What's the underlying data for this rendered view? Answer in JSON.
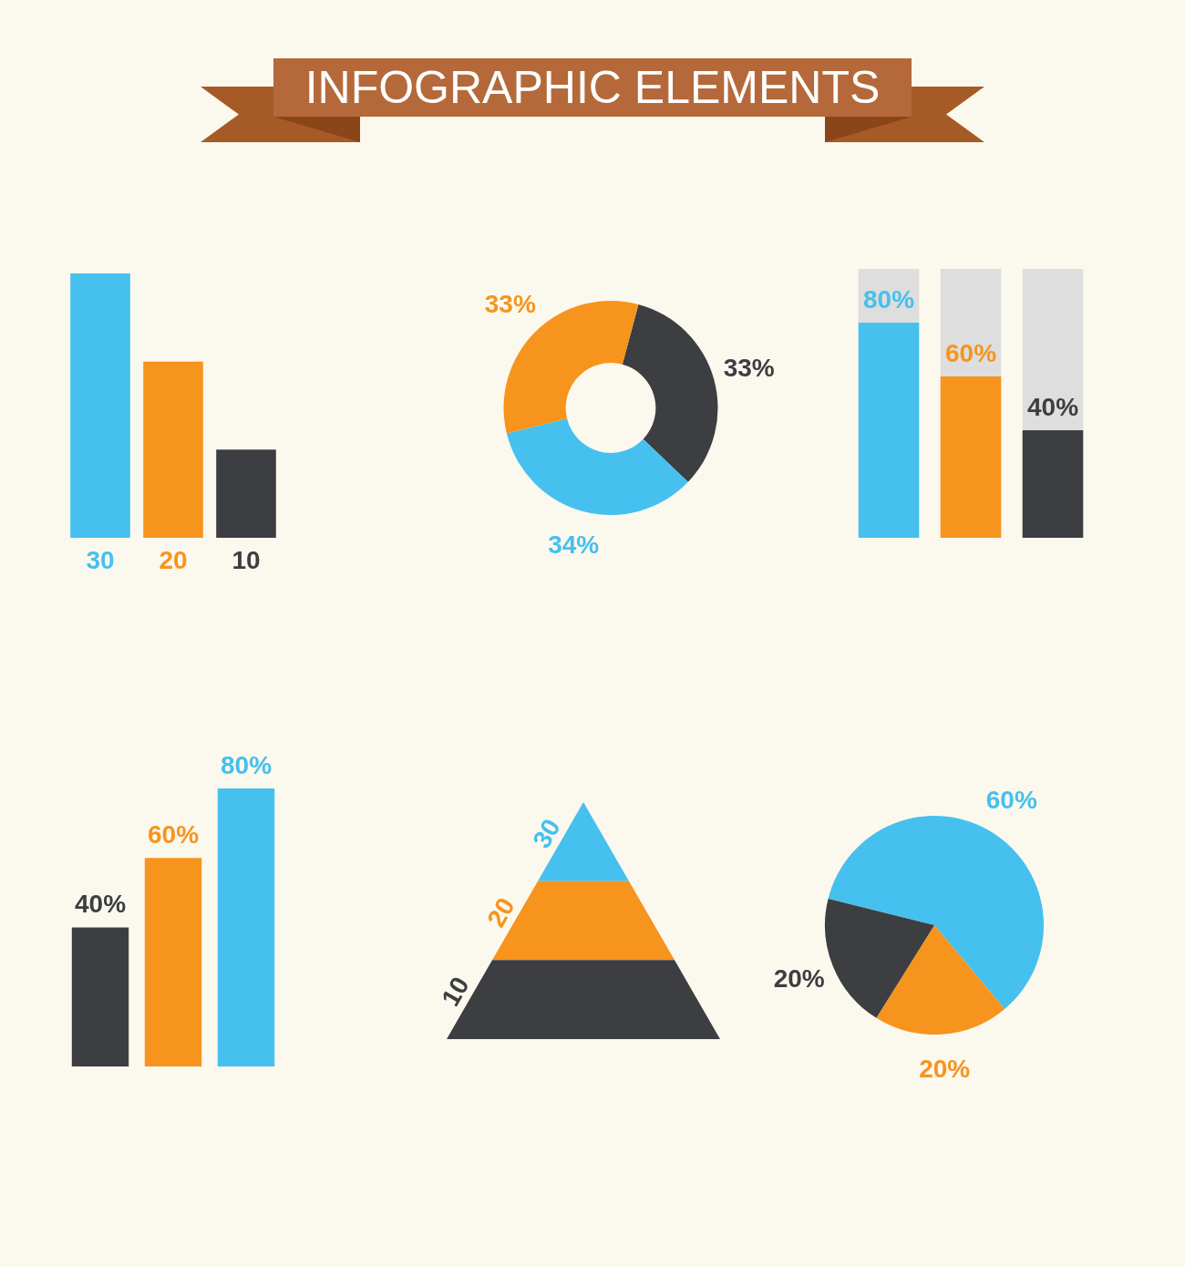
{
  "chart_data": [
    {
      "type": "other",
      "title": "INFOGRAPHIC ELEMENTS"
    },
    {
      "type": "bar",
      "categories": [
        null,
        null,
        null
      ],
      "values": [
        30,
        20,
        10
      ],
      "colors": [
        "#45c0ef",
        "#f7941d",
        "#3c3e41"
      ],
      "data_labels": true,
      "tick_labels": false
    },
    {
      "type": "donut",
      "categories": [
        null,
        null,
        null
      ],
      "values": [
        33,
        34,
        33
      ],
      "colors": [
        "#3c3e41",
        "#45c0ef",
        "#f7941d"
      ],
      "value_labels": [
        "33%",
        "34%",
        "33%"
      ]
    },
    {
      "type": "bar",
      "categories": [
        null,
        null,
        null
      ],
      "stacked": true,
      "series": [
        {
          "colors": [
            "#45c0ef",
            "#f7941d",
            "#3c3e41"
          ],
          "values": [
            80,
            60,
            40
          ],
          "value_labels": [
            "80%",
            "60%",
            "40%"
          ]
        },
        {
          "color": "#dedede",
          "values": [
            20,
            40,
            60
          ]
        }
      ],
      "ylim": [
        0,
        100
      ],
      "tick_labels": false
    },
    {
      "type": "bar",
      "categories": [
        null,
        null,
        null
      ],
      "values": [
        40,
        60,
        80
      ],
      "colors": [
        "#3c3e41",
        "#f7941d",
        "#45c0ef"
      ],
      "value_labels": [
        "40%",
        "60%",
        "80%"
      ],
      "tick_labels": false
    },
    {
      "type": "other",
      "values": [
        30,
        20,
        10
      ],
      "colors": [
        "#45c0ef",
        "#f7941d",
        "#3c3e41"
      ],
      "data_labels": true
    },
    {
      "type": "pie",
      "categories": [
        null,
        null,
        null
      ],
      "values": [
        60,
        20,
        20
      ],
      "colors": [
        "#45c0ef",
        "#f7941d",
        "#3c3e41"
      ],
      "value_labels": [
        "60%",
        "20%",
        "20%"
      ]
    }
  ]
}
